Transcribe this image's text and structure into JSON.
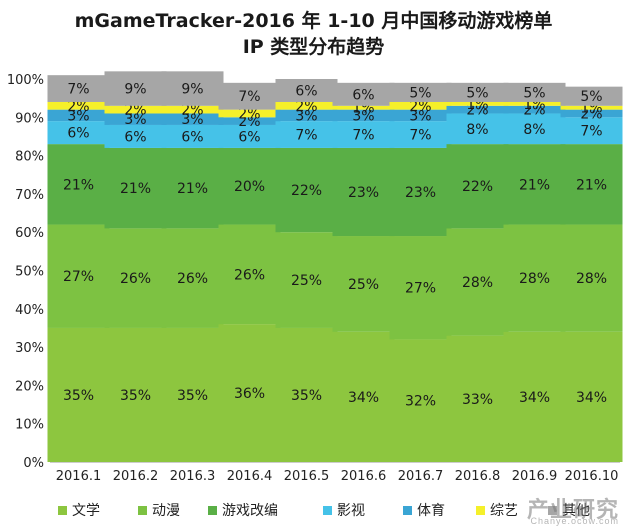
{
  "chart_data": {
    "type": "bar",
    "stacked": true,
    "title": "mGameTracker-2016 年 1-10 月中国移动游戏榜单",
    "subtitle": "IP 类型分布趋势",
    "categories": [
      "2016.1",
      "2016.2",
      "2016.3",
      "2016.4",
      "2016.5",
      "2016.6",
      "2016.7",
      "2016.8",
      "2016.9",
      "2016.10"
    ],
    "ylim": [
      0,
      100
    ],
    "yticks": [
      "0%",
      "10%",
      "20%",
      "30%",
      "40%",
      "50%",
      "60%",
      "70%",
      "80%",
      "90%",
      "100%"
    ],
    "legend_position": "bottom",
    "series": [
      {
        "name": "文学",
        "color": "#8dc63f",
        "values": [
          35,
          35,
          35,
          36,
          35,
          34,
          32,
          33,
          34,
          34
        ]
      },
      {
        "name": "动漫",
        "color": "#7dc242",
        "values": [
          27,
          26,
          26,
          26,
          25,
          25,
          27,
          28,
          28,
          28
        ]
      },
      {
        "name": "游戏改编",
        "color": "#5aaf46",
        "values": [
          21,
          21,
          21,
          20,
          22,
          23,
          23,
          22,
          21,
          21
        ]
      },
      {
        "name": "影视",
        "color": "#45c2e8",
        "values": [
          6,
          6,
          6,
          6,
          7,
          7,
          7,
          8,
          8,
          7
        ]
      },
      {
        "name": "体育",
        "color": "#3aa5d4",
        "values": [
          3,
          3,
          3,
          2,
          3,
          3,
          3,
          2,
          2,
          2
        ]
      },
      {
        "name": "综艺",
        "color": "#f5f02a",
        "values": [
          2,
          2,
          2,
          2,
          2,
          1,
          2,
          1,
          1,
          1
        ]
      },
      {
        "name": "其他",
        "color": "#a6a6a6",
        "values": [
          7,
          9,
          9,
          7,
          6,
          6,
          5,
          5,
          5,
          5
        ]
      }
    ]
  },
  "watermark": "产业研究",
  "watermark_url": "Chanye.ocow.com"
}
